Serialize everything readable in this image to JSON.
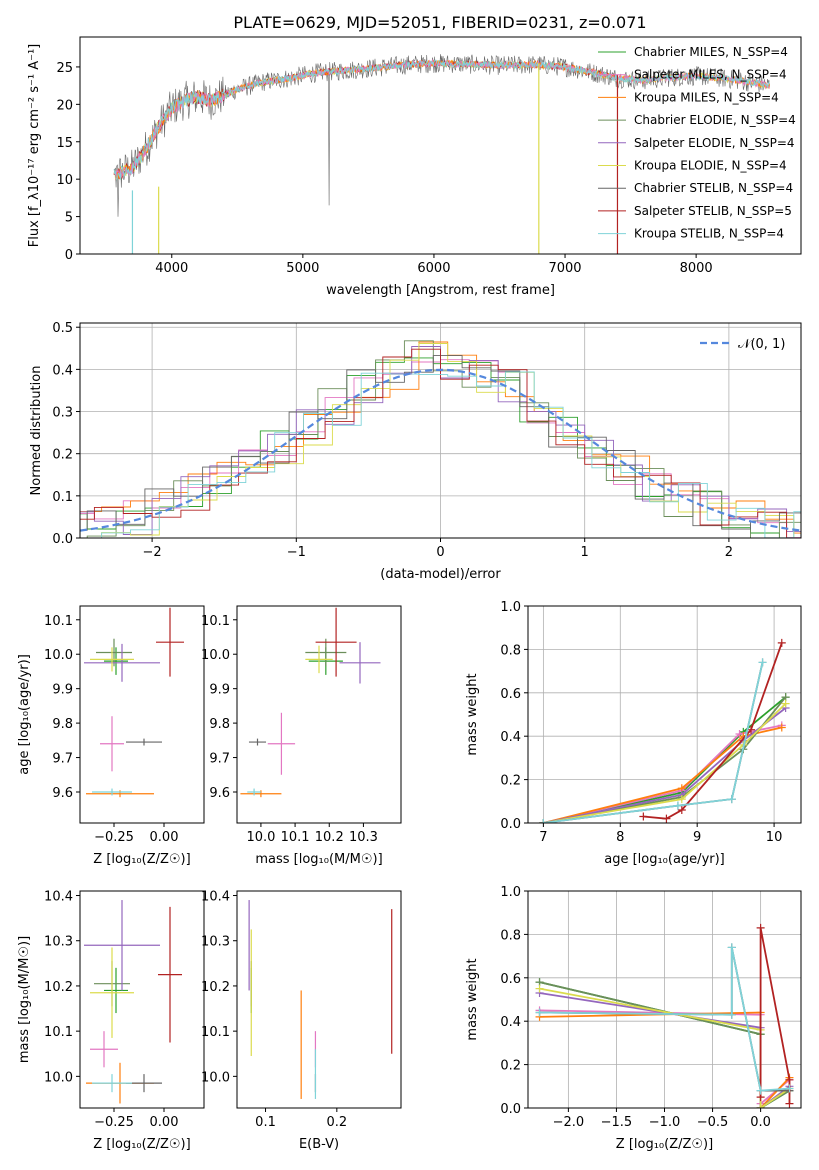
{
  "figure_title": "PLATE=0629, MJD=52051, FIBERID=0231, z=0.071",
  "colors": {
    "Chabrier MILES": "#2ca02c",
    "Salpeter MILES": "#e377c2",
    "Kroupa MILES": "#ff7f0e",
    "Chabrier ELODIE": "#6b8e5a",
    "Salpeter ELODIE": "#9467bd",
    "Kroupa ELODIE": "#dbdb4d",
    "Chabrier STELIB": "#666666",
    "Salpeter STELIB": "#b22222",
    "Kroupa STELIB": "#7fd3d8",
    "gauss": "#5588dd",
    "grid": "#b0b0b0"
  },
  "chart_data": [
    {
      "id": "spectrum",
      "type": "line",
      "title": "PLATE=0629, MJD=52051, FIBERID=0231, z=0.071",
      "xlabel": "wavelength [Angstrom, rest frame]",
      "ylabel": "Flux [f_λ10⁻¹⁷ erg cm⁻² s⁻¹ A⁻¹]",
      "xlim": [
        3300,
        8800
      ],
      "ylim": [
        0,
        29
      ],
      "xticks": [
        4000,
        5000,
        6000,
        7000,
        8000
      ],
      "yticks": [
        0,
        5,
        10,
        15,
        20,
        25
      ],
      "grid": false,
      "legend_position": "right",
      "legend": [
        "Chabrier MILES, N_SSP=4",
        "Salpeter MILES, N_SSP=4",
        "Kroupa MILES, N_SSP=4",
        "Chabrier ELODIE, N_SSP=4",
        "Salpeter ELODIE, N_SSP=4",
        "Kroupa ELODIE, N_SSP=4",
        "Chabrier STELIB, N_SSP=4",
        "Salpeter STELIB, N_SSP=5",
        "Kroupa STELIB, N_SSP=4"
      ],
      "legend_names": [
        "Chabrier MILES",
        "Salpeter MILES",
        "Kroupa MILES",
        "Chabrier ELODIE",
        "Salpeter ELODIE",
        "Kroupa ELODIE",
        "Chabrier STELIB",
        "Salpeter STELIB",
        "Kroupa STELIB"
      ],
      "continuum": {
        "x": [
          3560,
          3700,
          3800,
          3900,
          4000,
          4100,
          4200,
          4300,
          4500,
          4700,
          4900,
          5100,
          5300,
          5500,
          5800,
          6000,
          6200,
          6500,
          6800,
          7000,
          7200,
          7400,
          7600,
          7800,
          8000,
          8200,
          8400,
          8560
        ],
        "y": [
          10.5,
          11.5,
          14,
          17,
          19.5,
          20.5,
          21,
          20.5,
          22,
          23,
          23.5,
          24.2,
          24.5,
          24.8,
          25.3,
          25.5,
          25.4,
          25.2,
          25.3,
          25,
          24.3,
          23.5,
          23.2,
          23.6,
          23.8,
          23.5,
          23,
          22.5
        ]
      }
    },
    {
      "id": "residuals",
      "type": "step",
      "xlabel": "(data-model)/error",
      "ylabel": "Normed distribution",
      "xlim": [
        -2.5,
        2.5
      ],
      "ylim": [
        0,
        0.51
      ],
      "xticks": [
        -2,
        -1,
        0,
        1,
        2
      ],
      "yticks": [
        0.0,
        0.1,
        0.2,
        0.3,
        0.4,
        0.5
      ],
      "grid": true,
      "legend": [
        "𝒩(0, 1)"
      ],
      "legend_position": "top-right",
      "bin_edges": [
        -2.6,
        -2.4,
        -2.2,
        -2.0,
        -1.8,
        -1.6,
        -1.4,
        -1.2,
        -1.0,
        -0.8,
        -0.6,
        -0.4,
        -0.2,
        0.0,
        0.2,
        0.4,
        0.6,
        0.8,
        1.0,
        1.2,
        1.4,
        1.6,
        1.8,
        2.0,
        2.2,
        2.4,
        2.6
      ],
      "histogram": [
        0.02,
        0.03,
        0.05,
        0.08,
        0.11,
        0.15,
        0.19,
        0.22,
        0.26,
        0.31,
        0.36,
        0.39,
        0.43,
        0.41,
        0.38,
        0.36,
        0.3,
        0.26,
        0.21,
        0.17,
        0.13,
        0.09,
        0.07,
        0.05,
        0.03,
        0.02
      ]
    },
    {
      "id": "age-vs-Z",
      "type": "errorbar",
      "xlabel": "Z [log₁₀(Z/Z☉)]",
      "ylabel": "age  [log₁₀(age/yr)]",
      "xlim": [
        -0.42,
        0.2
      ],
      "ylim": [
        9.51,
        10.14
      ],
      "xticks": [
        -0.25,
        0.0
      ],
      "yticks": [
        9.6,
        9.7,
        9.8,
        9.9,
        10.0,
        10.1
      ],
      "xticklabels": [
        "−0.25",
        "0.00"
      ],
      "points": [
        {
          "series": "Chabrier MILES",
          "x": -0.24,
          "xerr": 0.06,
          "y": 9.98,
          "yerr": 0.04
        },
        {
          "series": "Salpeter MILES",
          "x": -0.26,
          "xerr": 0.06,
          "y": 9.74,
          "yerr": 0.08
        },
        {
          "series": "Kroupa MILES",
          "x": -0.22,
          "xerr": 0.17,
          "y": 9.595,
          "yerr": 0.01
        },
        {
          "series": "Chabrier ELODIE",
          "x": -0.25,
          "xerr": 0.09,
          "y": 10.005,
          "yerr": 0.04
        },
        {
          "series": "Salpeter ELODIE",
          "x": -0.21,
          "xerr": 0.19,
          "y": 9.975,
          "yerr": 0.055
        },
        {
          "series": "Kroupa ELODIE",
          "x": -0.26,
          "xerr": 0.11,
          "y": 9.985,
          "yerr": 0.035
        },
        {
          "series": "Chabrier STELIB",
          "x": -0.1,
          "xerr": 0.09,
          "y": 9.745,
          "yerr": 0.01
        },
        {
          "series": "Salpeter STELIB",
          "x": 0.03,
          "xerr": 0.07,
          "y": 10.035,
          "yerr": 0.1
        },
        {
          "series": "Kroupa STELIB",
          "x": -0.26,
          "xerr": 0.1,
          "y": 9.6,
          "yerr": 0.01
        }
      ]
    },
    {
      "id": "age-vs-mass",
      "type": "errorbar",
      "xlabel": "mass [log₁₀(M/M☉)]",
      "xlim": [
        9.93,
        10.41
      ],
      "ylim": [
        9.51,
        10.14
      ],
      "xticks": [
        10.0,
        10.1,
        10.2,
        10.3
      ],
      "yticks": [
        9.6,
        9.7,
        9.8,
        9.9,
        10.0,
        10.1
      ],
      "points": [
        {
          "series": "Chabrier MILES",
          "x": 10.19,
          "xerr": 0.05,
          "y": 9.98,
          "yerr": 0.04
        },
        {
          "series": "Salpeter MILES",
          "x": 10.06,
          "xerr": 0.04,
          "y": 9.74,
          "yerr": 0.09
        },
        {
          "series": "Kroupa MILES",
          "x": 10.0,
          "xerr": 0.06,
          "y": 9.595,
          "yerr": 0.01
        },
        {
          "series": "Chabrier ELODIE",
          "x": 10.19,
          "xerr": 0.06,
          "y": 10.005,
          "yerr": 0.04
        },
        {
          "series": "Salpeter ELODIE",
          "x": 10.29,
          "xerr": 0.06,
          "y": 9.975,
          "yerr": 0.06
        },
        {
          "series": "Kroupa ELODIE",
          "x": 10.17,
          "xerr": 0.04,
          "y": 9.985,
          "yerr": 0.04
        },
        {
          "series": "Chabrier STELIB",
          "x": 9.99,
          "xerr": 0.025,
          "y": 9.745,
          "yerr": 0.01
        },
        {
          "series": "Salpeter STELIB",
          "x": 10.22,
          "xerr": 0.06,
          "y": 10.035,
          "yerr": 0.1
        },
        {
          "series": "Kroupa STELIB",
          "x": 9.98,
          "xerr": 0.02,
          "y": 9.6,
          "yerr": 0.01
        }
      ]
    },
    {
      "id": "weight-vs-age",
      "type": "line",
      "xlabel": "age  [log₁₀(age/yr)]",
      "ylabel": "mass weight",
      "xlim": [
        6.8,
        10.35
      ],
      "ylim": [
        0,
        1.0
      ],
      "xticks": [
        7,
        8,
        9,
        10
      ],
      "yticks": [
        0.0,
        0.2,
        0.4,
        0.6,
        0.8,
        1.0
      ],
      "grid": true,
      "series": [
        {
          "name": "Chabrier MILES",
          "x": [
            7.0,
            8.8,
            9.6,
            10.15
          ],
          "y": [
            0.0,
            0.14,
            0.42,
            0.58
          ]
        },
        {
          "name": "Salpeter MILES",
          "x": [
            7.0,
            8.8,
            9.55,
            10.1
          ],
          "y": [
            0.0,
            0.15,
            0.41,
            0.45
          ]
        },
        {
          "name": "Kroupa MILES",
          "x": [
            7.0,
            8.8,
            9.6,
            10.1
          ],
          "y": [
            0.0,
            0.16,
            0.4,
            0.44
          ]
        },
        {
          "name": "Chabrier ELODIE",
          "x": [
            7.0,
            8.8,
            9.6,
            10.15
          ],
          "y": [
            0.0,
            0.12,
            0.34,
            0.58
          ]
        },
        {
          "name": "Salpeter ELODIE",
          "x": [
            7.0,
            8.8,
            9.6,
            10.15
          ],
          "y": [
            0.0,
            0.13,
            0.38,
            0.53
          ]
        },
        {
          "name": "Kroupa ELODIE",
          "x": [
            7.0,
            8.8,
            9.6,
            10.15
          ],
          "y": [
            0.0,
            0.11,
            0.36,
            0.55
          ]
        },
        {
          "name": "Chabrier STELIB",
          "x": [
            7.0,
            8.75,
            9.45,
            9.85
          ],
          "y": [
            0.0,
            0.08,
            0.11,
            0.74
          ]
        },
        {
          "name": "Salpeter STELIB",
          "x": [
            8.3,
            8.6,
            8.8,
            9.7,
            10.1
          ],
          "y": [
            0.03,
            0.02,
            0.06,
            0.43,
            0.83
          ]
        },
        {
          "name": "Kroupa STELIB",
          "x": [
            7.0,
            8.75,
            9.45,
            9.85
          ],
          "y": [
            0.0,
            0.08,
            0.11,
            0.74
          ]
        }
      ]
    },
    {
      "id": "mass-vs-Z",
      "type": "errorbar",
      "xlabel": "Z [log₁₀(Z/Z☉)]",
      "ylabel": "mass [log₁₀(M/M☉)]",
      "xlim": [
        -0.42,
        0.2
      ],
      "ylim": [
        9.93,
        10.41
      ],
      "xticks": [
        -0.25,
        0.0
      ],
      "yticks": [
        10.0,
        10.1,
        10.2,
        10.3,
        10.4
      ],
      "xticklabels": [
        "−0.25",
        "0.00"
      ],
      "points": [
        {
          "series": "Chabrier MILES",
          "x": -0.24,
          "xerr": 0.06,
          "y": 10.19,
          "yerr": 0.05
        },
        {
          "series": "Salpeter MILES",
          "x": -0.3,
          "xerr": 0.07,
          "y": 10.06,
          "yerr": 0.04
        },
        {
          "series": "Kroupa MILES",
          "x": -0.22,
          "xerr": 0.17,
          "y": 9.985,
          "yerr": 0.045
        },
        {
          "series": "Chabrier ELODIE",
          "x": -0.26,
          "xerr": 0.09,
          "y": 10.205,
          "yerr": 0.05
        },
        {
          "series": "Salpeter ELODIE",
          "x": -0.21,
          "xerr": 0.19,
          "y": 10.29,
          "yerr": 0.1
        },
        {
          "series": "Kroupa ELODIE",
          "x": -0.26,
          "xerr": 0.11,
          "y": 10.185,
          "yerr": 0.1
        },
        {
          "series": "Chabrier STELIB",
          "x": -0.1,
          "xerr": 0.09,
          "y": 9.985,
          "yerr": 0.02
        },
        {
          "series": "Salpeter STELIB",
          "x": 0.03,
          "xerr": 0.06,
          "y": 10.225,
          "yerr": 0.15
        },
        {
          "series": "Kroupa STELIB",
          "x": -0.26,
          "xerr": 0.1,
          "y": 9.985,
          "yerr": 0.02
        }
      ]
    },
    {
      "id": "mass-vs-ebv",
      "type": "errorbar",
      "xlabel": "E(B-V)",
      "xlim": [
        0.06,
        0.29
      ],
      "ylim": [
        9.93,
        10.41
      ],
      "xticks": [
        0.1,
        0.2
      ],
      "yticks": [
        10.0,
        10.1,
        10.2,
        10.3,
        10.4
      ],
      "points": [
        {
          "series": "Chabrier MILES",
          "x": 0.08,
          "y": 10.19,
          "yerr": 0.05
        },
        {
          "series": "Salpeter MILES",
          "x": 0.17,
          "y": 10.06,
          "yerr": 0.04
        },
        {
          "series": "Kroupa MILES",
          "x": 0.15,
          "y": 10.07,
          "yerr": 0.12
        },
        {
          "series": "Chabrier ELODIE",
          "x": 0.08,
          "y": 10.205,
          "yerr": 0.05
        },
        {
          "series": "Salpeter ELODIE",
          "x": 0.077,
          "y": 10.29,
          "yerr": 0.1
        },
        {
          "series": "Kroupa ELODIE",
          "x": 0.08,
          "y": 10.185,
          "yerr": 0.14
        },
        {
          "series": "Chabrier STELIB",
          "x": 0.17,
          "y": 9.985,
          "yerr": 0.02
        },
        {
          "series": "Salpeter STELIB",
          "x": 0.277,
          "y": 10.21,
          "yerr": 0.16
        },
        {
          "series": "Kroupa STELIB",
          "x": 0.17,
          "y": 10.005,
          "yerr": 0.055
        }
      ]
    },
    {
      "id": "weight-vs-Z",
      "type": "line",
      "xlabel": "Z [log₁₀(Z/Z☉)]",
      "ylabel": "mass weight",
      "xlim": [
        -2.42,
        0.42
      ],
      "ylim": [
        0,
        1.0
      ],
      "xticks": [
        -2.0,
        -1.5,
        -1.0,
        -0.5,
        0.0
      ],
      "xticklabels": [
        "−2.0",
        "−1.5",
        "−1.0",
        "−0.5",
        "0.0"
      ],
      "yticks": [
        0.0,
        0.2,
        0.4,
        0.6,
        0.8,
        1.0
      ],
      "grid": true,
      "series": [
        {
          "name": "Chabrier MILES",
          "x": [
            -2.3,
            0.0,
            0.0,
            0.3
          ],
          "y": [
            0.58,
            0.34,
            0.0,
            0.08
          ]
        },
        {
          "name": "Salpeter MILES",
          "x": [
            -2.3,
            0.0,
            0.0,
            0.3
          ],
          "y": [
            0.45,
            0.43,
            0.02,
            0.13
          ]
        },
        {
          "name": "Kroupa MILES",
          "x": [
            -2.3,
            0.0,
            0.0,
            0.3
          ],
          "y": [
            0.42,
            0.44,
            0.0,
            0.14
          ]
        },
        {
          "name": "Chabrier ELODIE",
          "x": [
            -2.3,
            0.0,
            0.0,
            0.3
          ],
          "y": [
            0.58,
            0.34,
            0.0,
            0.08
          ]
        },
        {
          "name": "Salpeter ELODIE",
          "x": [
            -2.3,
            0.0,
            0.0,
            0.3
          ],
          "y": [
            0.53,
            0.37,
            0.0,
            0.1
          ]
        },
        {
          "name": "Kroupa ELODIE",
          "x": [
            -2.3,
            0.0,
            0.0,
            0.3
          ],
          "y": [
            0.55,
            0.36,
            0.0,
            0.09
          ]
        },
        {
          "name": "Chabrier STELIB",
          "x": [
            -2.3,
            -0.3,
            -0.3,
            0.0,
            0.3
          ],
          "y": [
            0.44,
            0.43,
            0.74,
            0.08,
            0.08
          ]
        },
        {
          "name": "Salpeter STELIB",
          "x": [
            0.0,
            0.0,
            0.3,
            0.3
          ],
          "y": [
            0.05,
            0.83,
            0.13,
            0.02
          ]
        },
        {
          "name": "Kroupa STELIB",
          "x": [
            -2.3,
            -0.3,
            -0.3,
            0.0,
            0.3
          ],
          "y": [
            0.44,
            0.43,
            0.74,
            0.08,
            0.09
          ]
        }
      ]
    }
  ]
}
